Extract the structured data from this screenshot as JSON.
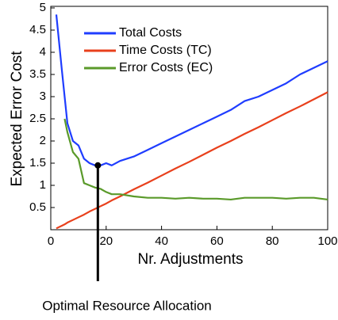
{
  "chart_data": {
    "type": "line",
    "xlabel": "Nr. Adjustments",
    "ylabel": "Expected Error Cost",
    "x": [
      2,
      4,
      5,
      6,
      8,
      10,
      12,
      14,
      16,
      18,
      20,
      22,
      25,
      30,
      35,
      40,
      45,
      50,
      55,
      60,
      65,
      70,
      75,
      80,
      85,
      90,
      95,
      100
    ],
    "series": [
      {
        "name": "Total Costs",
        "color": "#1f3dff",
        "values": [
          4.85,
          3.6,
          3.0,
          2.4,
          2.0,
          1.9,
          1.6,
          1.5,
          1.45,
          1.45,
          1.5,
          1.45,
          1.55,
          1.65,
          1.8,
          1.95,
          2.1,
          2.25,
          2.4,
          2.55,
          2.7,
          2.9,
          3.0,
          3.15,
          3.3,
          3.5,
          3.65,
          3.8
        ]
      },
      {
        "name": "Time Costs (TC)",
        "color": "#e8401c",
        "values": [
          0.03,
          0.09,
          0.12,
          0.16,
          0.22,
          0.28,
          0.34,
          0.41,
          0.47,
          0.53,
          0.59,
          0.66,
          0.75,
          0.91,
          1.06,
          1.22,
          1.38,
          1.53,
          1.69,
          1.85,
          2.0,
          2.16,
          2.31,
          2.47,
          2.63,
          2.78,
          2.94,
          3.1
        ]
      },
      {
        "name": "Error Costs (EC)",
        "color": "#5a9a2a",
        "values": [
          null,
          null,
          2.5,
          2.2,
          1.75,
          1.6,
          1.05,
          1.0,
          0.95,
          0.92,
          0.85,
          0.8,
          0.8,
          0.75,
          0.72,
          0.72,
          0.7,
          0.72,
          0.7,
          0.7,
          0.68,
          0.72,
          0.72,
          0.72,
          0.7,
          0.72,
          0.72,
          0.68
        ]
      }
    ],
    "xlim": [
      0,
      100
    ],
    "xticks": [
      0,
      20,
      40,
      60,
      80,
      100
    ],
    "ylim": [
      0,
      5
    ],
    "yticks": [
      0.5,
      1,
      1.5,
      2,
      2.5,
      3,
      3.5,
      4,
      4.5,
      5
    ],
    "annotation": {
      "text": "Optimal Resource Allocation",
      "x": 17,
      "y": 1.45
    }
  }
}
